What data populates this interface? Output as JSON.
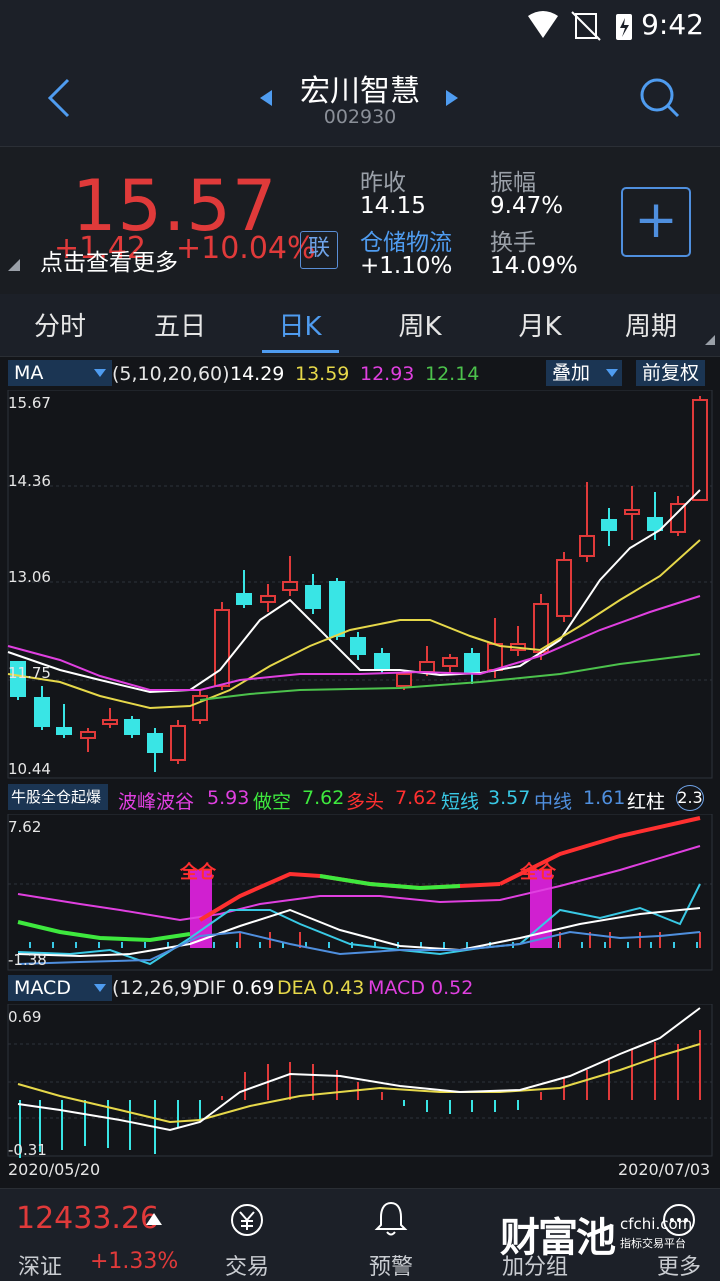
{
  "status": {
    "time": "9:42"
  },
  "header": {
    "title": "宏川智慧",
    "code": "002930"
  },
  "quote": {
    "price": "15.57",
    "change": "+1.42",
    "change_pct": "+10.04%",
    "hint": "点击查看更多",
    "link_badge": "联",
    "prev_close_label": "昨收",
    "prev_close": "14.15",
    "amplitude_label": "振幅",
    "amplitude": "9.47%",
    "sector_label": "仓储物流",
    "sector_pct": "+1.10%",
    "turnover_label": "换手",
    "turnover": "14.09%",
    "add_label": "+"
  },
  "tabs": [
    "分时",
    "五日",
    "日K",
    "周K",
    "月K",
    "周期"
  ],
  "ma_bar": {
    "dropdown": "MA",
    "params": "(5,10,20,60)",
    "v5": "14.29",
    "v10": "13.59",
    "v20": "12.93",
    "v60": "12.14",
    "overlay": "叠加",
    "adjust": "前复权"
  },
  "kline_axis": [
    "15.67",
    "14.36",
    "13.06",
    "11.75",
    "10.44"
  ],
  "indicator_bar": {
    "name": "牛股全仓起爆",
    "l1": "波峰波谷",
    "v1": "5.93",
    "l2": "做空",
    "v2": "7.62",
    "l3": "多头",
    "v3": "7.62",
    "l4": "短线",
    "v4": "3.57",
    "l5": "中线",
    "v5": "1.61",
    "l6": "红柱",
    "v6": "2.3"
  },
  "indicator_axis": {
    "top": "7.62",
    "bottom": "-1.38"
  },
  "indicator_labels": {
    "full1": "全仓",
    "full2": "全仓"
  },
  "macd_bar": {
    "dropdown": "MACD",
    "params": "(12,26,9)",
    "dif_label": "DIF",
    "dif": "0.69",
    "dea_label": "DEA",
    "dea": "0.43",
    "macd_label": "MACD",
    "macd": "0.52"
  },
  "macd_axis": {
    "top": "0.69",
    "bottom": "-0.31"
  },
  "dates": {
    "start": "2020/05/20",
    "end": "2020/07/03"
  },
  "bottom": {
    "index_value": "12433.26",
    "index_name": "深证",
    "index_pct": "+1.33%",
    "nav": [
      "交易",
      "预警",
      "加分组",
      "更多"
    ],
    "watermark": "财富池",
    "watermark_site": "cfchi.com",
    "watermark_sub": "指标交易平台"
  },
  "colors": {
    "up": "#e03a3a",
    "down": "#39e5e5",
    "accent": "#4f9cf0"
  }
}
